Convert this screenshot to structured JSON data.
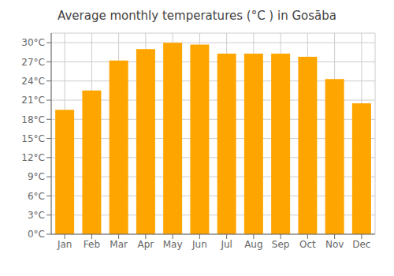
{
  "chart_data": {
    "type": "bar",
    "title": "Average monthly temperatures (°C ) in Gosāba",
    "categories": [
      "Jan",
      "Feb",
      "Mar",
      "Apr",
      "May",
      "Jun",
      "Jul",
      "Aug",
      "Sep",
      "Oct",
      "Nov",
      "Dec"
    ],
    "values": [
      19.5,
      22.5,
      27.2,
      29.0,
      30.0,
      29.7,
      28.3,
      28.3,
      28.3,
      27.8,
      24.3,
      20.5
    ],
    "color": "#FFA500",
    "ylim": [
      0,
      31.5
    ],
    "yticks": [
      {
        "value": 0,
        "label": "0°C"
      },
      {
        "value": 3,
        "label": "3°C"
      },
      {
        "value": 6,
        "label": "6°C"
      },
      {
        "value": 9,
        "label": "9°C"
      },
      {
        "value": 12,
        "label": "12°C"
      },
      {
        "value": 15,
        "label": "15°C"
      },
      {
        "value": 18,
        "label": "18°C"
      },
      {
        "value": 21,
        "label": "21°C"
      },
      {
        "value": 24,
        "label": "24°C"
      },
      {
        "value": 27,
        "label": "27°C"
      },
      {
        "value": 30,
        "label": "30°C"
      }
    ],
    "grid": true
  }
}
